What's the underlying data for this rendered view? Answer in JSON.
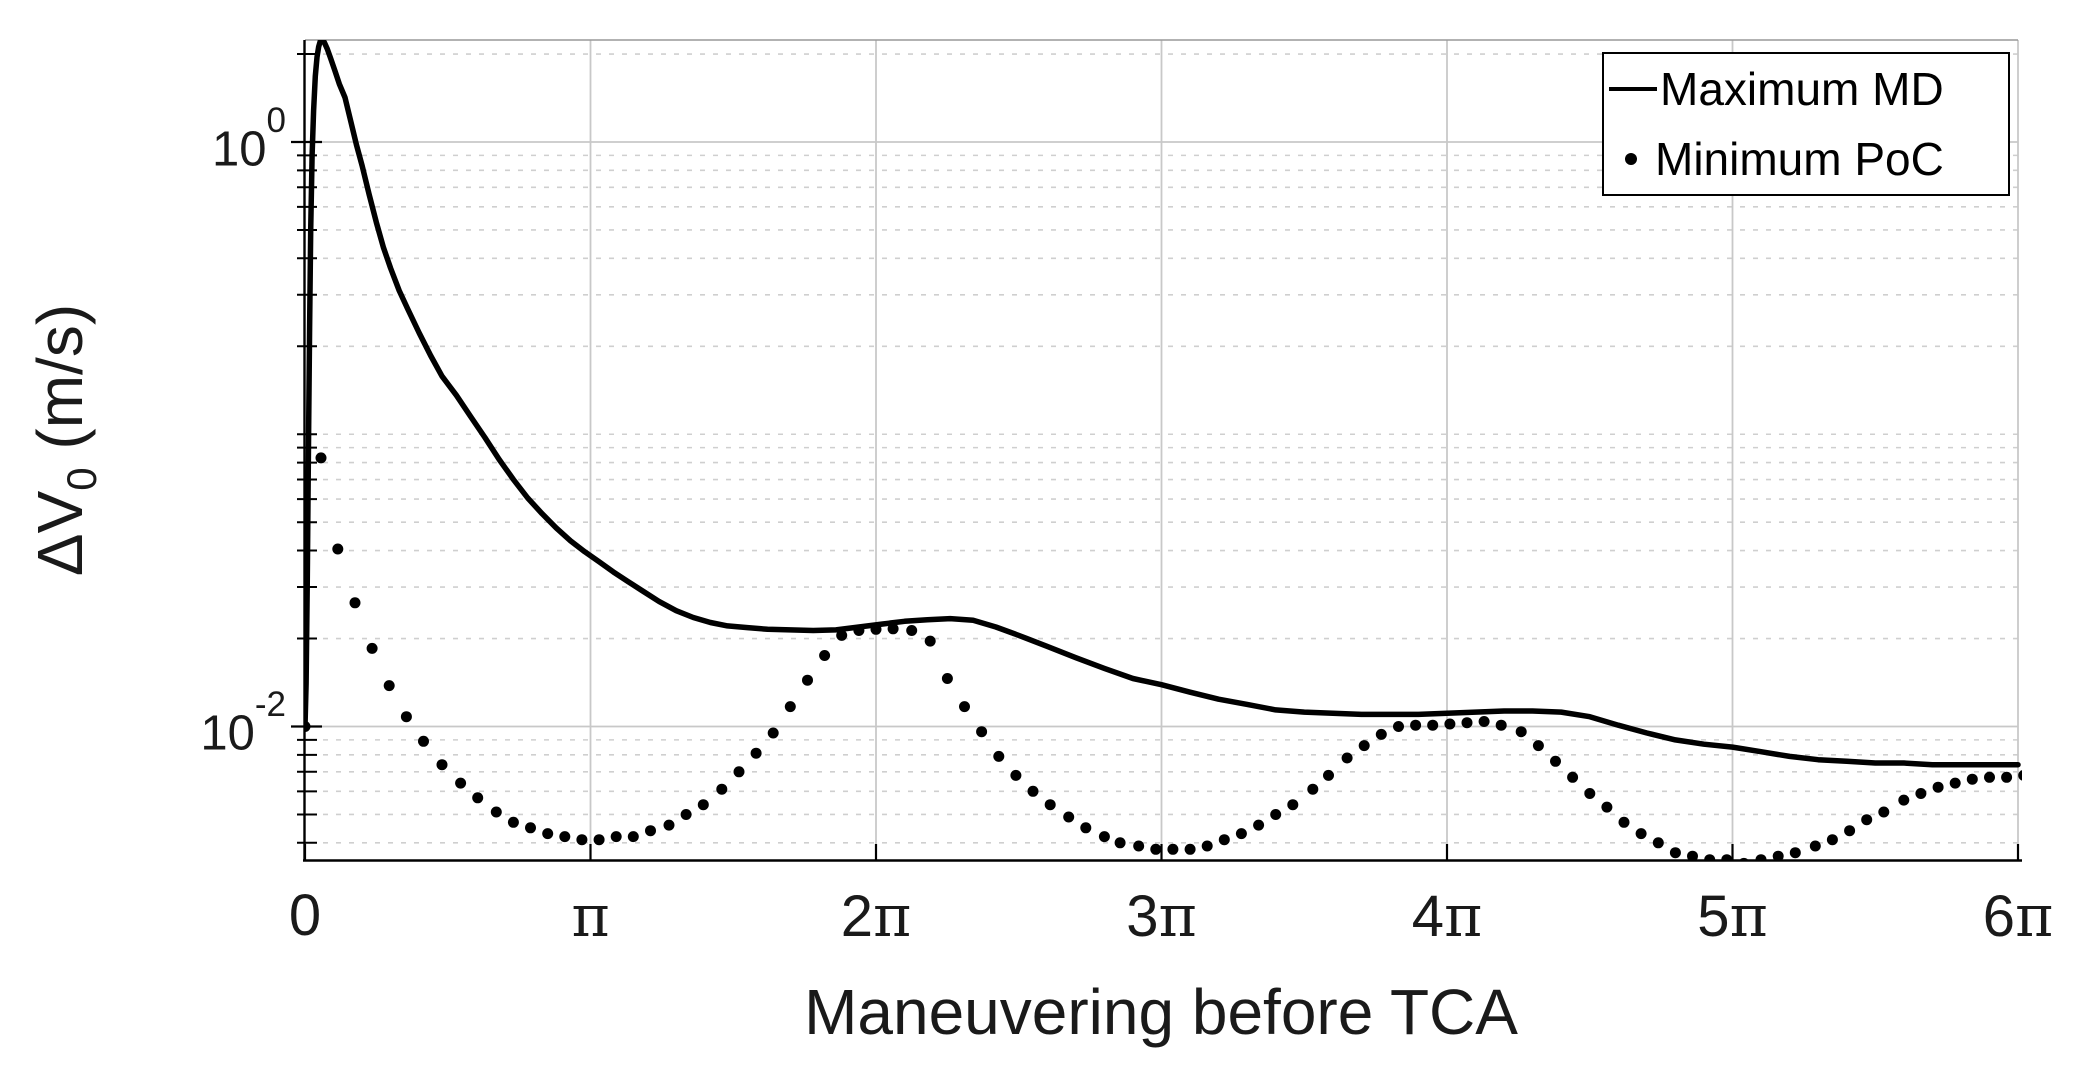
{
  "chart_data": {
    "type": "line",
    "title": "",
    "xlabel": "Maneuvering before TCA",
    "ylabel": {
      "main": "ΔV",
      "sub": "0",
      "unit": " (m/s)"
    },
    "x_axis": {
      "unit": "pi",
      "lim_pi": [
        0,
        6
      ],
      "ticks": [
        {
          "value": 0,
          "label": "0"
        },
        {
          "value": 1,
          "label": "π"
        },
        {
          "value": 2,
          "label": "2π"
        },
        {
          "value": 3,
          "label": "3π"
        },
        {
          "value": 4,
          "label": "4π"
        },
        {
          "value": 5,
          "label": "5π"
        },
        {
          "value": 6,
          "label": "6π"
        }
      ]
    },
    "y_axis": {
      "scale": "log",
      "lim": [
        0.0035,
        2.23
      ],
      "ticks": [
        {
          "value": 1,
          "base": "10",
          "exp": "0"
        },
        {
          "value": 0.01,
          "base": "10",
          "exp": "-2"
        }
      ],
      "minor_gridlines": [
        2,
        0.9,
        0.8,
        0.7,
        0.6,
        0.5,
        0.4,
        0.3,
        0.2,
        0.1,
        0.09,
        0.08,
        0.07,
        0.06,
        0.05,
        0.04,
        0.03,
        0.02,
        0.009,
        0.008,
        0.007,
        0.006,
        0.005,
        0.004
      ]
    },
    "grid": {
      "major": true,
      "minor": true,
      "minor_style": "dashed"
    },
    "legend": {
      "position": "northeast",
      "entries": [
        {
          "label": "Maximum MD",
          "marker": "line"
        },
        {
          "label": "Minimum PoC",
          "marker": "dot"
        }
      ]
    },
    "series": [
      {
        "name": "Maximum MD",
        "style": "solid",
        "color": "#000000",
        "line_width": 5.5,
        "points": [
          [
            0,
            0.01
          ],
          [
            0.004,
            0.014
          ],
          [
            0.008,
            0.032
          ],
          [
            0.012,
            0.085
          ],
          [
            0.016,
            0.23
          ],
          [
            0.02,
            0.5
          ],
          [
            0.025,
            0.9
          ],
          [
            0.03,
            1.28
          ],
          [
            0.036,
            1.68
          ],
          [
            0.042,
            1.95
          ],
          [
            0.048,
            2.12
          ],
          [
            0.054,
            2.22
          ],
          [
            0.06,
            2.26
          ],
          [
            0.068,
            2.19
          ],
          [
            0.078,
            2.08
          ],
          [
            0.09,
            1.93
          ],
          [
            0.105,
            1.75
          ],
          [
            0.12,
            1.58
          ],
          [
            0.14,
            1.42
          ],
          [
            0.16,
            1.18
          ],
          [
            0.18,
            0.98
          ],
          [
            0.2,
            0.83
          ],
          [
            0.225,
            0.66
          ],
          [
            0.25,
            0.53
          ],
          [
            0.275,
            0.435
          ],
          [
            0.3,
            0.37
          ],
          [
            0.33,
            0.31
          ],
          [
            0.36,
            0.268
          ],
          [
            0.4,
            0.222
          ],
          [
            0.44,
            0.186
          ],
          [
            0.48,
            0.158
          ],
          [
            0.53,
            0.136
          ],
          [
            0.58,
            0.115
          ],
          [
            0.63,
            0.0975
          ],
          [
            0.68,
            0.082
          ],
          [
            0.73,
            0.07
          ],
          [
            0.78,
            0.0605
          ],
          [
            0.83,
            0.0535
          ],
          [
            0.88,
            0.0478
          ],
          [
            0.93,
            0.0432
          ],
          [
            0.98,
            0.0396
          ],
          [
            1.03,
            0.0366
          ],
          [
            1.08,
            0.0338
          ],
          [
            1.13,
            0.0314
          ],
          [
            1.18,
            0.0292
          ],
          [
            1.24,
            0.0268
          ],
          [
            1.3,
            0.0249
          ],
          [
            1.36,
            0.0236
          ],
          [
            1.42,
            0.0227
          ],
          [
            1.48,
            0.0221
          ],
          [
            1.55,
            0.0218
          ],
          [
            1.62,
            0.0215
          ],
          [
            1.7,
            0.0214
          ],
          [
            1.78,
            0.0213
          ],
          [
            1.86,
            0.0214
          ],
          [
            1.94,
            0.0219
          ],
          [
            2.02,
            0.0224
          ],
          [
            2.1,
            0.0229
          ],
          [
            2.18,
            0.0232
          ],
          [
            2.26,
            0.0234
          ],
          [
            2.34,
            0.0231
          ],
          [
            2.42,
            0.0219
          ],
          [
            2.5,
            0.0205
          ],
          [
            2.6,
            0.0188
          ],
          [
            2.7,
            0.0172
          ],
          [
            2.8,
            0.0158
          ],
          [
            2.9,
            0.0146
          ],
          [
            3.0,
            0.0139
          ],
          [
            3.1,
            0.0131
          ],
          [
            3.2,
            0.0124
          ],
          [
            3.3,
            0.0119
          ],
          [
            3.4,
            0.0114
          ],
          [
            3.5,
            0.0112
          ],
          [
            3.6,
            0.0111
          ],
          [
            3.7,
            0.011
          ],
          [
            3.8,
            0.011
          ],
          [
            3.9,
            0.011
          ],
          [
            4.0,
            0.0111
          ],
          [
            4.1,
            0.0112
          ],
          [
            4.2,
            0.0113
          ],
          [
            4.3,
            0.0113
          ],
          [
            4.4,
            0.0112
          ],
          [
            4.5,
            0.0108
          ],
          [
            4.6,
            0.0101
          ],
          [
            4.7,
            0.0095
          ],
          [
            4.8,
            0.009
          ],
          [
            4.9,
            0.0087
          ],
          [
            5.0,
            0.0085
          ],
          [
            5.1,
            0.0082
          ],
          [
            5.2,
            0.0079
          ],
          [
            5.3,
            0.0077
          ],
          [
            5.4,
            0.0076
          ],
          [
            5.5,
            0.0075
          ],
          [
            5.6,
            0.0075
          ],
          [
            5.7,
            0.0074
          ],
          [
            5.8,
            0.0074
          ],
          [
            5.9,
            0.0074
          ],
          [
            6.0,
            0.0074
          ]
        ]
      },
      {
        "name": "Minimum PoC",
        "style": "dotted",
        "color": "#000000",
        "marker_radius": 5.5,
        "points": [
          [
            0.0,
            0.01
          ],
          [
            0.056,
            0.083
          ],
          [
            0.115,
            0.0405
          ],
          [
            0.175,
            0.0265
          ],
          [
            0.235,
            0.0185
          ],
          [
            0.295,
            0.0138
          ],
          [
            0.355,
            0.0108
          ],
          [
            0.415,
            0.0089
          ],
          [
            0.48,
            0.0074
          ],
          [
            0.545,
            0.0064
          ],
          [
            0.605,
            0.0057
          ],
          [
            0.67,
            0.0051
          ],
          [
            0.73,
            0.0047
          ],
          [
            0.79,
            0.0045
          ],
          [
            0.85,
            0.0043
          ],
          [
            0.91,
            0.0042
          ],
          [
            0.97,
            0.0041
          ],
          [
            1.03,
            0.0041
          ],
          [
            1.09,
            0.0042
          ],
          [
            1.15,
            0.0042
          ],
          [
            1.21,
            0.0044
          ],
          [
            1.275,
            0.0046
          ],
          [
            1.335,
            0.005
          ],
          [
            1.395,
            0.0054
          ],
          [
            1.46,
            0.0061
          ],
          [
            1.52,
            0.007
          ],
          [
            1.58,
            0.0081
          ],
          [
            1.64,
            0.0095
          ],
          [
            1.7,
            0.0117
          ],
          [
            1.76,
            0.0144
          ],
          [
            1.82,
            0.0175
          ],
          [
            1.88,
            0.0205
          ],
          [
            1.94,
            0.0213
          ],
          [
            2.0,
            0.0215
          ],
          [
            2.06,
            0.0216
          ],
          [
            2.125,
            0.0213
          ],
          [
            2.19,
            0.0196
          ],
          [
            2.25,
            0.0146
          ],
          [
            2.31,
            0.0117
          ],
          [
            2.37,
            0.0096
          ],
          [
            2.43,
            0.0079
          ],
          [
            2.49,
            0.0068
          ],
          [
            2.55,
            0.006
          ],
          [
            2.61,
            0.0054
          ],
          [
            2.675,
            0.0049
          ],
          [
            2.735,
            0.0045
          ],
          [
            2.8,
            0.0042
          ],
          [
            2.855,
            0.004
          ],
          [
            2.92,
            0.0039
          ],
          [
            2.98,
            0.0038
          ],
          [
            3.04,
            0.0038
          ],
          [
            3.1,
            0.0038
          ],
          [
            3.16,
            0.0039
          ],
          [
            3.22,
            0.0041
          ],
          [
            3.28,
            0.0043
          ],
          [
            3.34,
            0.0046
          ],
          [
            3.4,
            0.005
          ],
          [
            3.46,
            0.0054
          ],
          [
            3.53,
            0.0061
          ],
          [
            3.585,
            0.0068
          ],
          [
            3.65,
            0.0078
          ],
          [
            3.71,
            0.0086
          ],
          [
            3.77,
            0.0094
          ],
          [
            3.83,
            0.01
          ],
          [
            3.89,
            0.0101
          ],
          [
            3.95,
            0.0101
          ],
          [
            4.01,
            0.0102
          ],
          [
            4.07,
            0.0103
          ],
          [
            4.13,
            0.0104
          ],
          [
            4.19,
            0.0101
          ],
          [
            4.26,
            0.0096
          ],
          [
            4.32,
            0.0086
          ],
          [
            4.38,
            0.0076
          ],
          [
            4.44,
            0.0067
          ],
          [
            4.5,
            0.0059
          ],
          [
            4.56,
            0.0053
          ],
          [
            4.62,
            0.0047
          ],
          [
            4.68,
            0.0043
          ],
          [
            4.74,
            0.004
          ],
          [
            4.8,
            0.0037
          ],
          [
            4.86,
            0.0036
          ],
          [
            4.92,
            0.0035
          ],
          [
            4.98,
            0.0035
          ],
          [
            5.04,
            0.0034
          ],
          [
            5.1,
            0.0035
          ],
          [
            5.16,
            0.0036
          ],
          [
            5.22,
            0.0037
          ],
          [
            5.29,
            0.0039
          ],
          [
            5.35,
            0.0041
          ],
          [
            5.41,
            0.0044
          ],
          [
            5.47,
            0.0048
          ],
          [
            5.53,
            0.0051
          ],
          [
            5.6,
            0.0056
          ],
          [
            5.66,
            0.0059
          ],
          [
            5.72,
            0.0062
          ],
          [
            5.78,
            0.0064
          ],
          [
            5.84,
            0.0066
          ],
          [
            5.9,
            0.0067
          ],
          [
            5.96,
            0.0067
          ],
          [
            6.02,
            0.0068
          ]
        ]
      }
    ],
    "colors": {
      "background": "#ffffff",
      "axis": "#000000",
      "grid_major": "#c8c8c8",
      "grid_minor": "#cfcfcf",
      "text": "#1a1a1a"
    }
  }
}
